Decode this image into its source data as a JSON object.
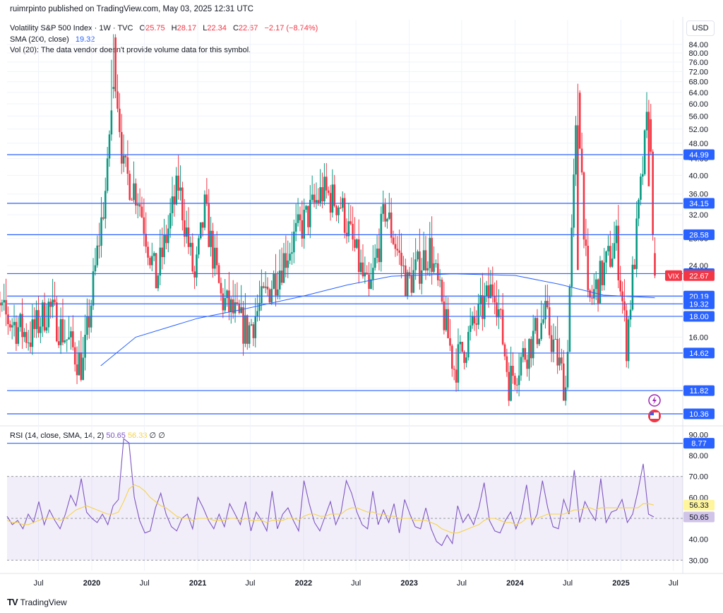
{
  "header": {
    "publisher": "ruimrpinto published on TradingView.com, May 03, 2025 12:31 UTC",
    "currency": "USD"
  },
  "legend": {
    "title": "Volatility S&P 500 Index · 1W · TVC",
    "o_label": "O",
    "o": "25.75",
    "h_label": "H",
    "h": "28.17",
    "l_label": "L",
    "l": "22.34",
    "c_label": "C",
    "c": "22.67",
    "change": "−2.17 (−8.74%)",
    "sma_label": "SMA (200, close)",
    "sma_value": "19.32",
    "vol_line": "Vol (20): The data vendor doesn't provide volume data for this symbol."
  },
  "rsi_legend": {
    "label": "RSI (14, close, SMA, 14, 2)",
    "rsi": "50.65",
    "rsi_sma": "56.33",
    "na1": "∅",
    "na2": "∅"
  },
  "footer": {
    "brand": "TradingView",
    "logo": "TV"
  },
  "colors": {
    "up": "#089981",
    "down": "#f23645",
    "hline": "#2962ff",
    "sma": "#2962ff",
    "rsi": "#7e57c2",
    "rsi_sma": "#f5d34a",
    "grid": "#f0f3fa",
    "axis_text": "#131722"
  },
  "chart_data": [
    {
      "type": "candlestick",
      "title": "Volatility S&P 500 Index · 1W · TVC",
      "y_scale": "log",
      "ylim": [
        8.0,
        90.0
      ],
      "price_ticks": [
        "84.00",
        "80.00",
        "76.00",
        "72.00",
        "68.00",
        "64.00",
        "60.00",
        "56.00",
        "52.00",
        "48.00",
        "44.00",
        "40.00",
        "36.00",
        "32.00",
        "28.00",
        "24.00",
        "20.00",
        "16.00",
        "12.00"
      ],
      "x_tick_labels": [
        "Jul",
        "2020",
        "Jul",
        "2021",
        "Jul",
        "2022",
        "Jul",
        "2023",
        "Jul",
        "2024",
        "Jul",
        "2025",
        "Jul"
      ],
      "x_tick_dates": [
        "2019-07-01",
        "2020-01-01",
        "2020-07-01",
        "2021-01-01",
        "2021-07-01",
        "2022-01-01",
        "2022-07-01",
        "2023-01-01",
        "2023-07-01",
        "2024-01-01",
        "2024-07-01",
        "2025-01-01",
        "2025-07-01"
      ],
      "xlim": [
        "2019-01-07",
        "2025-08-01"
      ],
      "horizontal_levels": [
        44.99,
        34.15,
        28.58,
        22.93,
        20.19,
        19.32,
        18.0,
        14.62,
        11.82,
        10.36,
        8.77
      ],
      "last_price_label": "VIX",
      "last_price": 22.67,
      "last_open": 25.75,
      "last_high": 28.17,
      "last_low": 22.34,
      "sma_200_last": 19.32,
      "key_points": [
        {
          "date": "2019-01-07",
          "value": 19.5
        },
        {
          "date": "2019-06-01",
          "value": 16.0
        },
        {
          "date": "2019-08-05",
          "value": 19.0
        },
        {
          "date": "2019-12-01",
          "value": 13.5
        },
        {
          "date": "2020-02-24",
          "value": 40.1
        },
        {
          "date": "2020-03-16",
          "value": 82.7
        },
        {
          "date": "2020-04-20",
          "value": 41.0
        },
        {
          "date": "2020-06-08",
          "value": 36.0
        },
        {
          "date": "2020-08-10",
          "value": 22.0
        },
        {
          "date": "2020-10-26",
          "value": 38.0
        },
        {
          "date": "2020-12-21",
          "value": 22.0
        },
        {
          "date": "2021-01-25",
          "value": 33.0
        },
        {
          "date": "2021-03-22",
          "value": 20.0
        },
        {
          "date": "2021-06-21",
          "value": 16.5
        },
        {
          "date": "2021-11-29",
          "value": 28.0
        },
        {
          "date": "2022-03-07",
          "value": 36.5
        },
        {
          "date": "2022-05-09",
          "value": 34.0
        },
        {
          "date": "2022-08-15",
          "value": 20.0
        },
        {
          "date": "2022-10-10",
          "value": 33.0
        },
        {
          "date": "2022-12-26",
          "value": 21.5
        },
        {
          "date": "2023-03-13",
          "value": 26.5
        },
        {
          "date": "2023-06-05",
          "value": 13.5
        },
        {
          "date": "2023-10-23",
          "value": 21.7
        },
        {
          "date": "2023-12-11",
          "value": 12.5
        },
        {
          "date": "2024-04-15",
          "value": 18.0
        },
        {
          "date": "2024-06-24",
          "value": 12.0
        },
        {
          "date": "2024-08-05",
          "value": 65.7
        },
        {
          "date": "2024-09-09",
          "value": 19.0
        },
        {
          "date": "2024-12-16",
          "value": 27.6
        },
        {
          "date": "2025-01-20",
          "value": 15.5
        },
        {
          "date": "2025-04-07",
          "value": 60.1
        },
        {
          "date": "2025-04-28",
          "value": 22.67
        }
      ]
    },
    {
      "type": "line",
      "title": "RSI (14, close, SMA, 14, 2)",
      "ylim": [
        30,
        90
      ],
      "y_ticks": [
        "90.00",
        "80.00",
        "70.00",
        "60.00",
        "50.00",
        "40.00",
        "30.00"
      ],
      "band": [
        30,
        70
      ],
      "series": [
        {
          "name": "RSI",
          "last": 50.65,
          "color": "#7e57c2",
          "values": [
            51,
            47,
            49,
            45,
            52,
            48,
            58,
            47,
            54,
            49,
            45,
            52,
            61,
            56,
            69,
            53,
            50,
            48,
            52,
            47,
            56,
            59,
            88,
            86,
            60,
            49,
            43,
            44,
            55,
            62,
            52,
            46,
            44,
            50,
            52,
            45,
            60,
            55,
            49,
            45,
            52,
            46,
            57,
            52,
            47,
            58,
            44,
            53,
            49,
            44,
            63,
            45,
            52,
            55,
            49,
            44,
            68,
            57,
            48,
            44,
            51,
            58,
            47,
            53,
            68,
            62,
            53,
            47,
            45,
            63,
            47,
            54,
            48,
            57,
            43,
            59,
            52,
            46,
            45,
            55,
            45,
            39,
            37,
            42,
            38,
            56,
            48,
            52,
            47,
            55,
            67,
            49,
            44,
            43,
            49,
            53,
            45,
            52,
            66,
            47,
            52,
            68,
            55,
            46,
            45,
            59,
            52,
            73,
            48,
            58,
            53,
            49,
            69,
            48,
            53,
            54,
            59,
            48,
            52,
            63,
            76,
            52,
            50.65
          ]
        },
        {
          "name": "RSI SMA",
          "last": 56.33,
          "color": "#f5d34a",
          "values": [
            49,
            48,
            48,
            47,
            47,
            48,
            49,
            50,
            50,
            50,
            49,
            50,
            52,
            54,
            55,
            56,
            55,
            54,
            53,
            52,
            52,
            53,
            58,
            64,
            66,
            65,
            63,
            60,
            58,
            56,
            55,
            53,
            51,
            50,
            50,
            49,
            50,
            50,
            50,
            49,
            49,
            49,
            50,
            50,
            49,
            50,
            49,
            49,
            49,
            48,
            49,
            49,
            49,
            50,
            50,
            49,
            51,
            52,
            52,
            51,
            51,
            52,
            52,
            52,
            54,
            55,
            55,
            54,
            53,
            53,
            52,
            52,
            51,
            51,
            50,
            50,
            50,
            49,
            49,
            49,
            48,
            47,
            45,
            44,
            43,
            43,
            44,
            45,
            46,
            47,
            49,
            50,
            50,
            49,
            48,
            48,
            47,
            48,
            50,
            50,
            50,
            51,
            52,
            52,
            52,
            52,
            53,
            54,
            54,
            55,
            55,
            54,
            55,
            55,
            55,
            55,
            55,
            55,
            55,
            55,
            57,
            57,
            56.33
          ]
        }
      ]
    }
  ]
}
